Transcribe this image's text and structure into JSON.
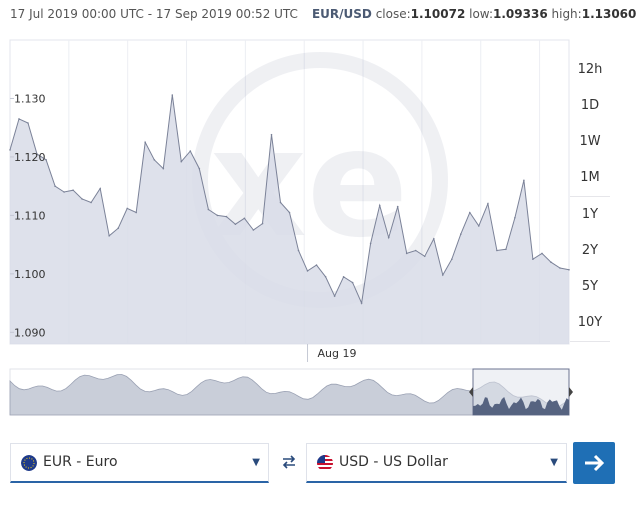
{
  "header": {
    "range": "17 Jul 2019 00:00 UTC - 17 Sep 2019 00:52 UTC",
    "pair": "EUR/USD",
    "close_label": "close:",
    "close_value": "1.10072",
    "low_label": "low:",
    "low_value": "1.09336",
    "high_label": "high:",
    "high_value": "1.13060"
  },
  "range_buttons": [
    "12h",
    "1D",
    "1W",
    "1M",
    "1Y",
    "2Y",
    "5Y",
    "10Y"
  ],
  "from_select": {
    "label": "EUR - Euro",
    "icon": "eu-flag-icon"
  },
  "to_select": {
    "label": "USD - US Dollar",
    "icon": "us-flag-icon"
  },
  "colors": {
    "fill": "#d8dce8",
    "line": "#7b8298",
    "accent": "#1f6fb5",
    "navigator_dark": "#566380"
  },
  "chart_data": {
    "type": "area",
    "title": "",
    "xlabel": "",
    "ylabel": "",
    "ylim": [
      1.088,
      1.14
    ],
    "yticks": [
      "1.130",
      "1.120",
      "1.110",
      "1.100",
      "1.090"
    ],
    "xticks": [
      {
        "x": "2019-08-19",
        "label": "Aug 19"
      }
    ],
    "grid": true,
    "legend": "none",
    "series": [
      {
        "x": [
          "2019-07-17",
          "2019-07-18",
          "2019-07-19",
          "2019-07-20",
          "2019-07-21",
          "2019-07-22",
          "2019-07-23",
          "2019-07-24",
          "2019-07-25",
          "2019-07-26",
          "2019-07-27",
          "2019-07-28",
          "2019-07-29",
          "2019-07-30",
          "2019-07-31",
          "2019-08-01",
          "2019-08-02",
          "2019-08-03",
          "2019-08-04",
          "2019-08-05",
          "2019-08-06",
          "2019-08-07",
          "2019-08-08",
          "2019-08-09",
          "2019-08-10",
          "2019-08-11",
          "2019-08-12",
          "2019-08-13",
          "2019-08-14",
          "2019-08-15",
          "2019-08-16",
          "2019-08-17",
          "2019-08-18",
          "2019-08-19",
          "2019-08-20",
          "2019-08-21",
          "2019-08-22",
          "2019-08-23",
          "2019-08-24",
          "2019-08-25",
          "2019-08-26",
          "2019-08-27",
          "2019-08-28",
          "2019-08-29",
          "2019-08-30",
          "2019-08-31",
          "2019-09-01",
          "2019-09-02",
          "2019-09-03",
          "2019-09-04",
          "2019-09-05",
          "2019-09-06",
          "2019-09-07",
          "2019-09-08",
          "2019-09-09",
          "2019-09-10",
          "2019-09-11",
          "2019-09-12",
          "2019-09-13",
          "2019-09-14",
          "2019-09-15",
          "2019-09-16",
          "2019-09-17"
        ],
        "values": [
          1.1212,
          1.1265,
          1.1258,
          1.1205,
          1.1195,
          1.115,
          1.114,
          1.1143,
          1.1128,
          1.1122,
          1.1146,
          1.1065,
          1.1078,
          1.1112,
          1.1105,
          1.1225,
          1.1195,
          1.118,
          1.1306,
          1.1192,
          1.121,
          1.118,
          1.111,
          1.11,
          1.1098,
          1.1085,
          1.1095,
          1.1075,
          1.1086,
          1.1238,
          1.1122,
          1.1105,
          1.104,
          1.1005,
          1.1015,
          1.0995,
          1.0962,
          1.0995,
          1.0985,
          1.095,
          1.1052,
          1.1117,
          1.1062,
          1.1115,
          1.1035,
          1.104,
          1.103,
          1.106,
          1.0998,
          1.1025,
          1.1068,
          1.1105,
          1.1082,
          1.112,
          1.104,
          1.1042,
          1.1096,
          1.116,
          1.1025,
          1.1035,
          1.102,
          1.101,
          1.1007
        ]
      }
    ]
  }
}
